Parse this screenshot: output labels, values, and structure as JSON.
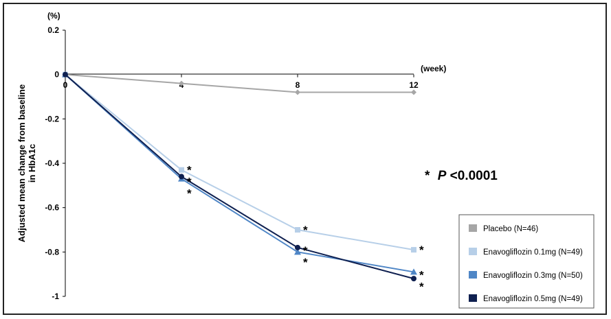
{
  "chart_data": {
    "type": "line",
    "x_unit": "(week)",
    "y_unit": "(%)",
    "ylabel_line1": "Adjusted mean change from baseline",
    "ylabel_line2": "in HbA1c",
    "x": [
      0,
      4,
      8,
      12
    ],
    "x_ticks": [
      "0",
      "4",
      "8",
      "12"
    ],
    "ylim": [
      -1,
      0.2
    ],
    "y_ticks": [
      "0.2",
      "0",
      "-0.2",
      "-0.4",
      "-0.6",
      "-0.8",
      "-1"
    ],
    "y_tick_values": [
      0.2,
      0,
      -0.2,
      -0.4,
      -0.6,
      -0.8,
      -1
    ],
    "grid": false,
    "legend_position": "bottom-right",
    "significance_note_symbol": "*",
    "significance_note_p": "P",
    "significance_note_value": "<0.0001",
    "series": [
      {
        "name": "Placebo (N=46)",
        "values": [
          0,
          -0.04,
          -0.08,
          -0.08
        ],
        "color": "#a6a6a6",
        "marker": "diamond",
        "stars": [
          false,
          false,
          false,
          false
        ]
      },
      {
        "name": "Enavogliflozin  0.1mg (N=49)",
        "values": [
          0,
          -0.43,
          -0.7,
          -0.79
        ],
        "color": "#b7cfe8",
        "marker": "square",
        "stars": [
          false,
          true,
          true,
          true
        ]
      },
      {
        "name": "Enavogliflozin  0.3mg (N=50)",
        "values": [
          0,
          -0.47,
          -0.8,
          -0.89
        ],
        "color": "#4f86c6",
        "marker": "triangle",
        "stars": [
          false,
          true,
          true,
          true
        ]
      },
      {
        "name": "Enavogliflozin  0.5mg (N=49)",
        "values": [
          0,
          -0.46,
          -0.78,
          -0.92
        ],
        "color": "#0f2050",
        "marker": "circle",
        "stars": [
          false,
          true,
          true,
          true
        ]
      }
    ]
  }
}
